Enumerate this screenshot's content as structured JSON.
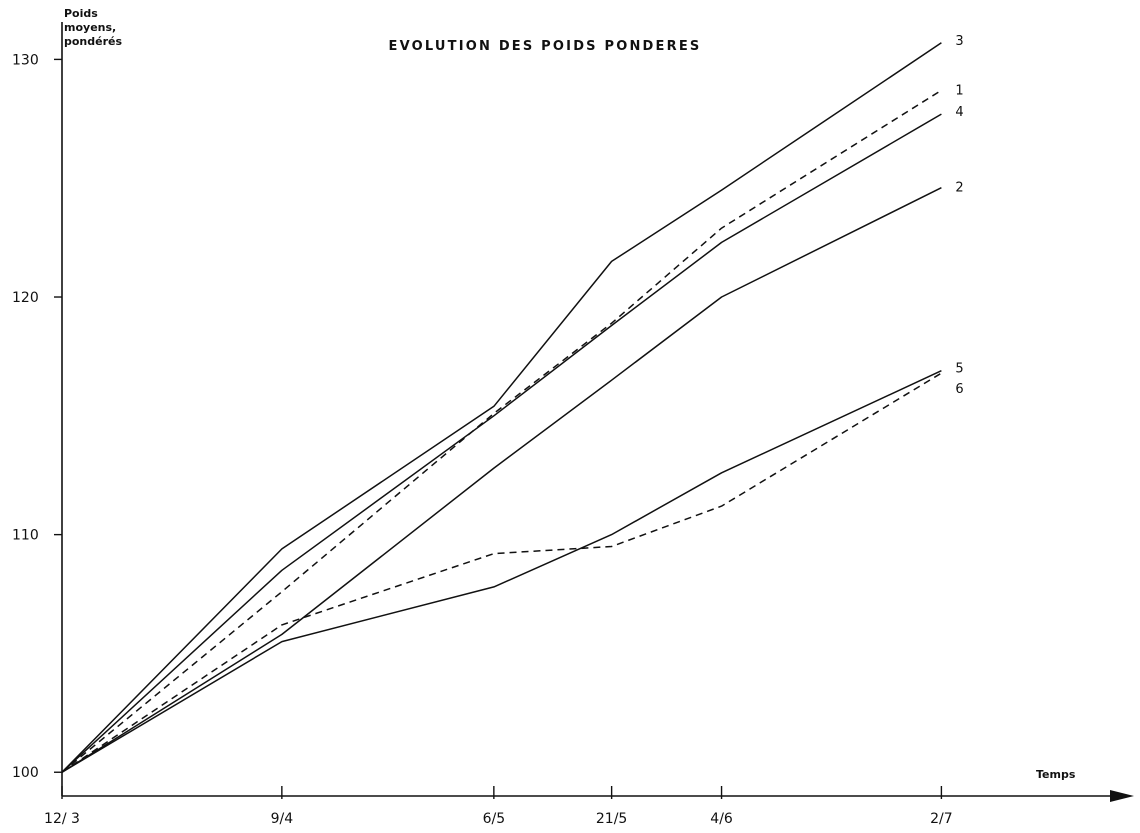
{
  "chart_data": {
    "type": "line",
    "title": "EVOLUTION DES POIDS PONDERES",
    "ylabel_lines": [
      "Poids",
      "moyens,",
      "pondérés"
    ],
    "xlabel": "Temps",
    "y_ticks": [
      {
        "value": 100,
        "label": "100"
      },
      {
        "value": 110,
        "label": "110"
      },
      {
        "value": 120,
        "label": "120"
      },
      {
        "value": 130,
        "label": "130"
      }
    ],
    "ylim": [
      99,
      132.5
    ],
    "x_ticks": [
      {
        "value": 0,
        "label": "12/ 3"
      },
      {
        "value": 28,
        "label": "9/4"
      },
      {
        "value": 55,
        "label": "6/5"
      },
      {
        "value": 70,
        "label": "21/5"
      },
      {
        "value": 84,
        "label": "4/6"
      },
      {
        "value": 112,
        "label": "2/7"
      }
    ],
    "xlim": [
      0,
      135
    ],
    "grid": false,
    "legend": "none",
    "series": [
      {
        "name": "3",
        "style": "solid",
        "x": [
          0,
          28,
          55,
          70,
          84,
          112
        ],
        "y": [
          100,
          109.4,
          115.4,
          121.5,
          124.5,
          130.7
        ]
      },
      {
        "name": "1",
        "style": "dashed",
        "x": [
          0,
          28,
          55,
          70,
          84,
          112
        ],
        "y": [
          100,
          107.6,
          115.1,
          118.9,
          122.9,
          128.7
        ]
      },
      {
        "name": "4",
        "style": "solid",
        "x": [
          0,
          28,
          55,
          70,
          84,
          112
        ],
        "y": [
          100,
          108.5,
          115.0,
          118.8,
          122.3,
          127.7
        ]
      },
      {
        "name": "2",
        "style": "solid",
        "x": [
          0,
          28,
          55,
          70,
          84,
          112
        ],
        "y": [
          100,
          105.8,
          112.8,
          116.5,
          120.0,
          124.6
        ]
      },
      {
        "name": "5",
        "style": "solid",
        "x": [
          0,
          28,
          55,
          70,
          84,
          112
        ],
        "y": [
          100,
          105.5,
          107.8,
          110.0,
          112.6,
          116.9
        ]
      },
      {
        "name": "6",
        "style": "dashed",
        "x": [
          0,
          28,
          55,
          70,
          84,
          112
        ],
        "y": [
          100,
          106.2,
          109.2,
          109.5,
          111.2,
          116.8
        ]
      }
    ]
  }
}
